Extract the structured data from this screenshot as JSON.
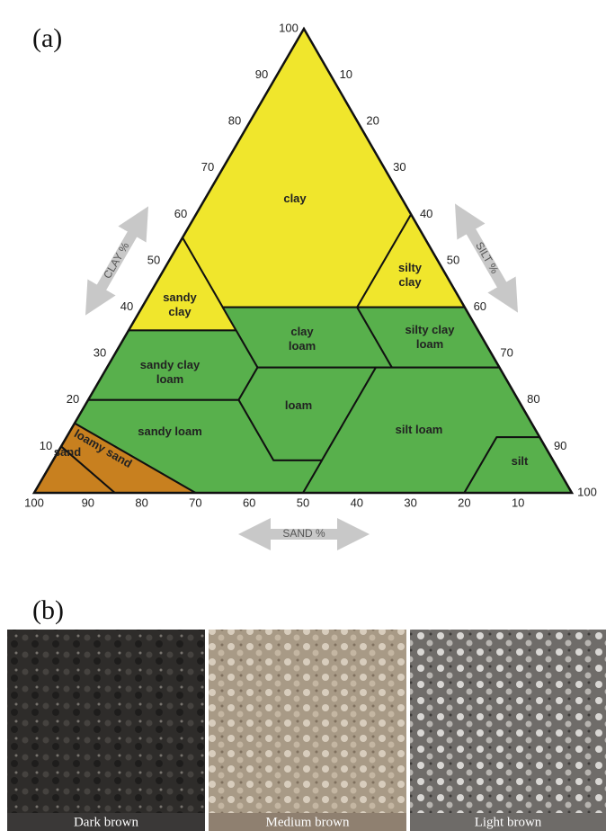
{
  "panel_a": {
    "label": "(a)",
    "clay_ticks": [
      10,
      20,
      30,
      40,
      50,
      60,
      70,
      80,
      90,
      100
    ],
    "silt_ticks": [
      10,
      20,
      30,
      40,
      50,
      60,
      70,
      80,
      90,
      100
    ],
    "sand_ticks": [
      100,
      90,
      80,
      70,
      60,
      50,
      40,
      30,
      20,
      10
    ],
    "axis_labels": {
      "clay": "CLAY %",
      "silt": "SILT %",
      "sand": "SAND %"
    },
    "regions": [
      [
        "clay"
      ],
      [
        "silty",
        "clay"
      ],
      [
        "sandy",
        "clay"
      ],
      [
        "clay",
        "loam"
      ],
      [
        "silty clay",
        "loam"
      ],
      [
        "sandy clay",
        "loam"
      ],
      [
        "loam"
      ],
      [
        "silt loam"
      ],
      [
        "silt"
      ],
      [
        "sandy loam"
      ],
      [
        "loamy sand"
      ],
      [
        "sand"
      ]
    ]
  },
  "panel_b": {
    "label": "(b)",
    "samples": [
      "Dark brown",
      "Medium brown",
      "Light brown"
    ]
  }
}
